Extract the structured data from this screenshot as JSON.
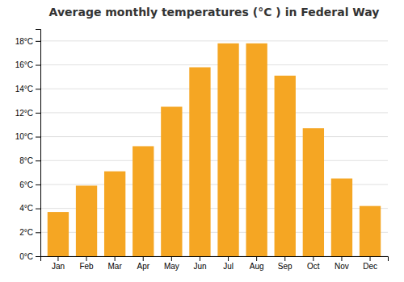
{
  "chart_data": {
    "type": "bar",
    "title": "Average monthly temperatures (°C ) in Federal Way",
    "categories": [
      "Jan",
      "Feb",
      "Mar",
      "Apr",
      "May",
      "Jun",
      "Jul",
      "Aug",
      "Sep",
      "Oct",
      "Nov",
      "Dec"
    ],
    "values": [
      3.7,
      5.9,
      7.1,
      9.2,
      12.5,
      15.8,
      17.8,
      17.8,
      15.1,
      10.7,
      6.5,
      4.2
    ],
    "color": "#F5A623",
    "ylim": [
      0,
      19
    ],
    "yticks": [
      {
        "value": 0,
        "label": "0°C"
      },
      {
        "value": 2,
        "label": "2°C"
      },
      {
        "value": 4,
        "label": "4°C"
      },
      {
        "value": 6,
        "label": "6°C"
      },
      {
        "value": 8,
        "label": "8°C"
      },
      {
        "value": 10,
        "label": "10°C"
      },
      {
        "value": 12,
        "label": "12°C"
      },
      {
        "value": 14,
        "label": "14°C"
      },
      {
        "value": 16,
        "label": "16°C"
      },
      {
        "value": 18,
        "label": "18°C"
      }
    ],
    "grid": true
  }
}
